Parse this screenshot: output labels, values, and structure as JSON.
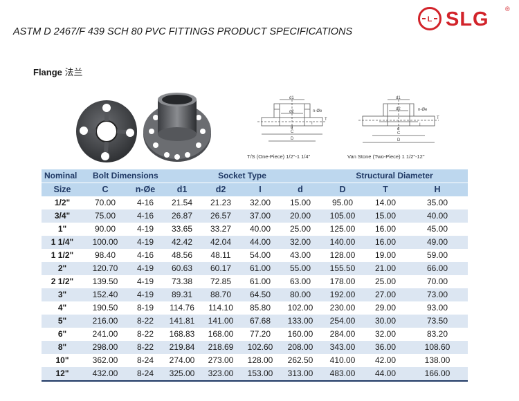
{
  "brand": {
    "name": "SLG",
    "registered_mark": "®",
    "logo_letter": "L",
    "color": "#d2232a"
  },
  "document": {
    "title": "ASTM D 2467/F 439 SCH 80 PVC FITTINGS PRODUCT SPECIFICATIONS",
    "section_en": "Flange",
    "section_cn": "法兰"
  },
  "diagrams": [
    {
      "caption": "T/S (One-Piece) 1/2\"-1 1/4\"",
      "labels": [
        "d1",
        "d2",
        "n-Øe",
        "T",
        "I",
        "C",
        "d",
        "D"
      ]
    },
    {
      "caption": "Van Stone (Two-Piece) 1 1/2\"-12\"",
      "labels": [
        "d1",
        "d2",
        "n-Øe",
        "T",
        "I",
        "d",
        "C",
        "D"
      ]
    }
  ],
  "table": {
    "group_headers": [
      "Nominal",
      "Bolt Dimensions",
      "Socket Type",
      "Structural Diameter"
    ],
    "columns": [
      "Size",
      "C",
      "n-Øe",
      "d1",
      "d2",
      "I",
      "d",
      "D",
      "T",
      "H"
    ],
    "rows": [
      [
        "1/2\"",
        "70.00",
        "4-16",
        "21.54",
        "21.23",
        "32.00",
        "15.00",
        "95.00",
        "14.00",
        "35.00"
      ],
      [
        "3/4\"",
        "75.00",
        "4-16",
        "26.87",
        "26.57",
        "37.00",
        "20.00",
        "105.00",
        "15.00",
        "40.00"
      ],
      [
        "1\"",
        "90.00",
        "4-19",
        "33.65",
        "33.27",
        "40.00",
        "25.00",
        "125.00",
        "16.00",
        "45.00"
      ],
      [
        "1 1/4\"",
        "100.00",
        "4-19",
        "42.42",
        "42.04",
        "44.00",
        "32.00",
        "140.00",
        "16.00",
        "49.00"
      ],
      [
        "1 1/2\"",
        "98.40",
        "4-16",
        "48.56",
        "48.11",
        "54.00",
        "43.00",
        "128.00",
        "19.00",
        "59.00"
      ],
      [
        "2\"",
        "120.70",
        "4-19",
        "60.63",
        "60.17",
        "61.00",
        "55.00",
        "155.50",
        "21.00",
        "66.00"
      ],
      [
        "2 1/2\"",
        "139.50",
        "4-19",
        "73.38",
        "72.85",
        "61.00",
        "63.00",
        "178.00",
        "25.00",
        "70.00"
      ],
      [
        "3\"",
        "152.40",
        "4-19",
        "89.31",
        "88.70",
        "64.50",
        "80.00",
        "192.00",
        "27.00",
        "73.00"
      ],
      [
        "4\"",
        "190.50",
        "8-19",
        "114.76",
        "114.10",
        "85.80",
        "102.00",
        "230.00",
        "29.00",
        "93.00"
      ],
      [
        "5\"",
        "216.00",
        "8-22",
        "141.81",
        "141.00",
        "67.68",
        "133.00",
        "254.00",
        "30.00",
        "73.50"
      ],
      [
        "6\"",
        "241.00",
        "8-22",
        "168.83",
        "168.00",
        "77.20",
        "160.00",
        "284.00",
        "32.00",
        "83.20"
      ],
      [
        "8\"",
        "298.00",
        "8-22",
        "219.84",
        "218.69",
        "102.60",
        "208.00",
        "343.00",
        "36.00",
        "108.60"
      ],
      [
        "10\"",
        "362.00",
        "8-24",
        "274.00",
        "273.00",
        "128.00",
        "262.50",
        "410.00",
        "42.00",
        "138.00"
      ],
      [
        "12\"",
        "432.00",
        "8-24",
        "325.00",
        "323.00",
        "153.00",
        "313.00",
        "483.00",
        "44.00",
        "166.00"
      ]
    ]
  }
}
